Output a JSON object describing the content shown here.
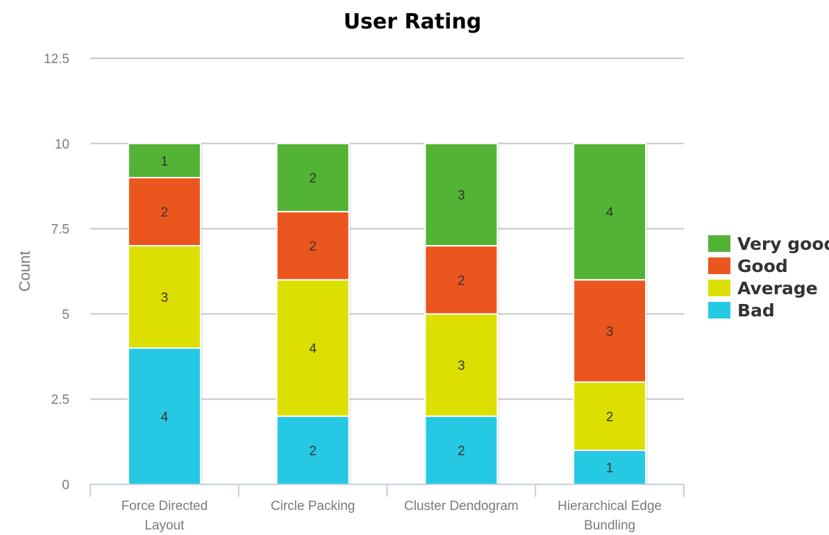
{
  "chart_data": {
    "type": "bar",
    "stacked": true,
    "title": "User Rating",
    "xlabel": "",
    "ylabel": "Count",
    "ylim": [
      0,
      12.5
    ],
    "yticks": [
      "0",
      "2.5",
      "5",
      "7.5",
      "10",
      "12.5"
    ],
    "categories": [
      [
        "Force Directed",
        "Layout"
      ],
      [
        "Circle Packing"
      ],
      [
        "Cluster Dendogram"
      ],
      [
        "Hierarchical Edge",
        "Bundling"
      ]
    ],
    "series": [
      {
        "name": "Bad",
        "color": "#26c9e4",
        "values": [
          4,
          2,
          2,
          1
        ]
      },
      {
        "name": "Average",
        "color": "#dcdf00",
        "values": [
          3,
          4,
          3,
          2
        ]
      },
      {
        "name": "Good",
        "color": "#eb561e",
        "values": [
          2,
          2,
          2,
          3
        ]
      },
      {
        "name": "Very good",
        "color": "#52b334",
        "values": [
          1,
          2,
          3,
          4
        ]
      }
    ],
    "legend_order": [
      "Very good",
      "Good",
      "Average",
      "Bad"
    ],
    "legend_position": "right",
    "grid": true
  }
}
